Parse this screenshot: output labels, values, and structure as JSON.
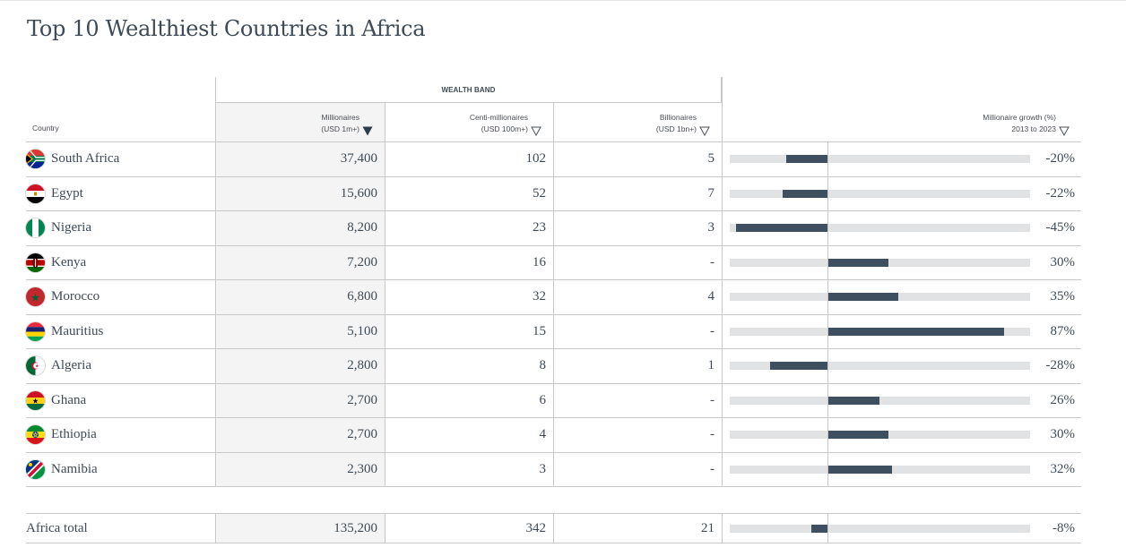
{
  "title": "Top 10 Wealthiest Countries in Africa",
  "header": {
    "band": "WEALTH BAND",
    "country": "Country",
    "millionaires": [
      "Millionaires",
      "(USD 1m+)"
    ],
    "centi": [
      "Centi-millionaires",
      "(USD 100m+)"
    ],
    "billionaires": [
      "Billionaires",
      "(USD 1bn+)"
    ],
    "growth": [
      "Millionaire growth (%)",
      "2013 to 2023"
    ],
    "active_sort": "millionaires",
    "sort_direction": "descending"
  },
  "growth_scale": {
    "min": -48,
    "max": 100
  },
  "colors": {
    "bar": "#3e5060",
    "track": "#e1e2e3",
    "highlight_col": "#f4f4f4",
    "border": "#c8c8c8",
    "text": "#3e4a57"
  },
  "rows": [
    {
      "country": "South Africa",
      "flag": "south-africa-flag",
      "millionaires": "37,400",
      "centi": "102",
      "billionaires": "5",
      "growth": -20,
      "growth_label": "-20%"
    },
    {
      "country": "Egypt",
      "flag": "egypt-flag",
      "millionaires": "15,600",
      "centi": "52",
      "billionaires": "7",
      "growth": -22,
      "growth_label": "-22%"
    },
    {
      "country": "Nigeria",
      "flag": "nigeria-flag",
      "millionaires": "8,200",
      "centi": "23",
      "billionaires": "3",
      "growth": -45,
      "growth_label": "-45%"
    },
    {
      "country": "Kenya",
      "flag": "kenya-flag",
      "millionaires": "7,200",
      "centi": "16",
      "billionaires": "-",
      "growth": 30,
      "growth_label": "30%"
    },
    {
      "country": "Morocco",
      "flag": "morocco-flag",
      "millionaires": "6,800",
      "centi": "32",
      "billionaires": "4",
      "growth": 35,
      "growth_label": "35%"
    },
    {
      "country": "Mauritius",
      "flag": "mauritius-flag",
      "millionaires": "5,100",
      "centi": "15",
      "billionaires": "-",
      "growth": 87,
      "growth_label": "87%"
    },
    {
      "country": "Algeria",
      "flag": "algeria-flag",
      "millionaires": "2,800",
      "centi": "8",
      "billionaires": "1",
      "growth": -28,
      "growth_label": "-28%"
    },
    {
      "country": "Ghana",
      "flag": "ghana-flag",
      "millionaires": "2,700",
      "centi": "6",
      "billionaires": "-",
      "growth": 26,
      "growth_label": "26%"
    },
    {
      "country": "Ethiopia",
      "flag": "ethiopia-flag",
      "millionaires": "2,700",
      "centi": "4",
      "billionaires": "-",
      "growth": 30,
      "growth_label": "30%"
    },
    {
      "country": "Namibia",
      "flag": "namibia-flag",
      "millionaires": "2,300",
      "centi": "3",
      "billionaires": "-",
      "growth": 32,
      "growth_label": "32%"
    }
  ],
  "total": {
    "country": "Africa total",
    "millionaires": "135,200",
    "centi": "342",
    "billionaires": "21",
    "growth": -8,
    "growth_label": "-8%"
  }
}
